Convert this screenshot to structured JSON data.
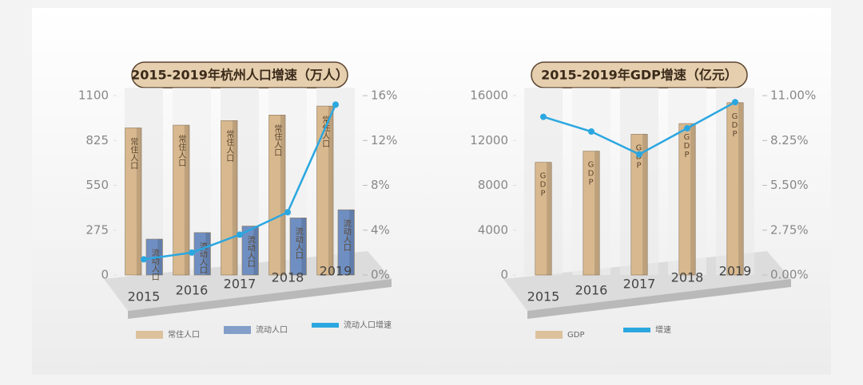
{
  "chart_data": [
    {
      "type": "bar",
      "title": "2015-2019年杭州人口增速（万人）",
      "categories": [
        "2015",
        "2016",
        "2017",
        "2018",
        "2019"
      ],
      "series": [
        {
          "name": "常住人口",
          "color": "#d8b88e",
          "values": [
            902,
            919,
            947,
            981,
            1036
          ]
        },
        {
          "name": "流动人口",
          "color": "#6f8fc2",
          "values": [
            220,
            260,
            300,
            350,
            400
          ]
        },
        {
          "name": "流动人口增速",
          "type": "line",
          "axis": "y2",
          "color": "#2ba7e0",
          "values": [
            1.4,
            2.0,
            3.6,
            5.6,
            15.2
          ]
        }
      ],
      "ylim": [
        0,
        1100
      ],
      "yticks": [
        0,
        275,
        550,
        825,
        1100
      ],
      "y2lim": [
        0,
        16
      ],
      "y2ticks": [
        {
          "value": 0,
          "label": "0%"
        },
        {
          "value": 4,
          "label": "4%"
        },
        {
          "value": 8,
          "label": "8%"
        },
        {
          "value": 12,
          "label": "12%"
        },
        {
          "value": 16,
          "label": "16%"
        }
      ],
      "grid": false
    },
    {
      "type": "bar",
      "title": "2015-2019年GDP增速（亿元）",
      "categories": [
        "2015",
        "2016",
        "2017",
        "2018",
        "2019"
      ],
      "series": [
        {
          "name": "GDP",
          "color": "#d8b88e",
          "values": [
            10050,
            11050,
            12556,
            13509,
            15373
          ]
        },
        {
          "name": "增速",
          "type": "line",
          "axis": "y2",
          "color": "#2ba7e0",
          "values": [
            9.7,
            8.8,
            7.4,
            9.0,
            10.6
          ]
        }
      ],
      "ylim": [
        0,
        16000
      ],
      "yticks": [
        0,
        4000,
        8000,
        12000,
        16000
      ],
      "y2lim": [
        0,
        11
      ],
      "y2ticks": [
        {
          "value": 0,
          "label": "0.00%"
        },
        {
          "value": 2.75,
          "label": "2.75%"
        },
        {
          "value": 5.5,
          "label": "5.50%"
        },
        {
          "value": 8.25,
          "label": "8.25%"
        },
        {
          "value": 11,
          "label": "11.00%"
        }
      ],
      "grid": false
    }
  ]
}
